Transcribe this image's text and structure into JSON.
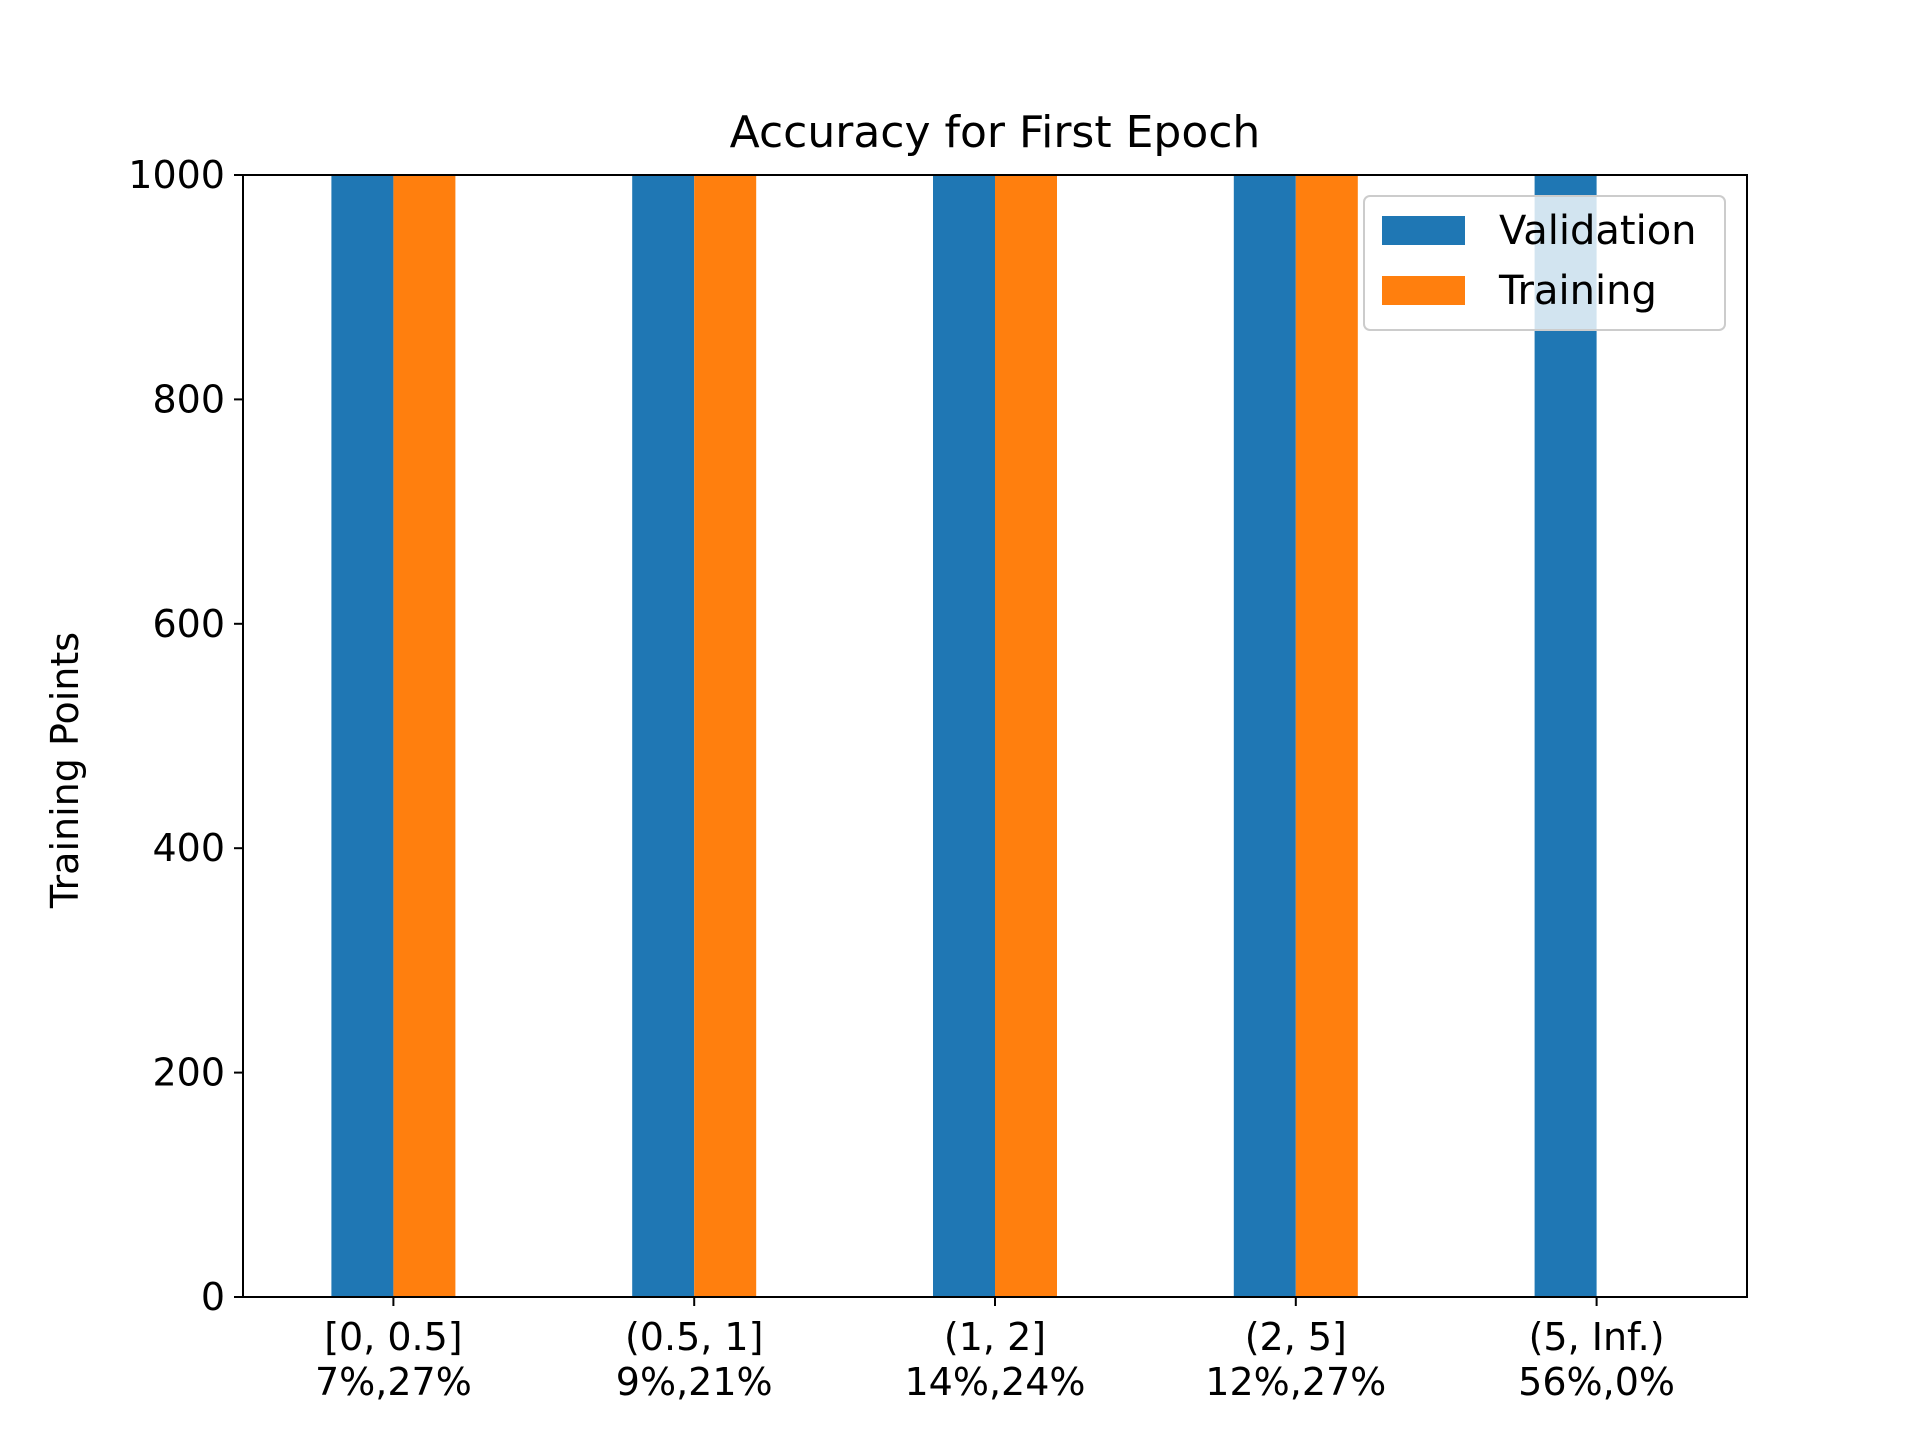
{
  "chart_data": {
    "type": "bar",
    "title": "Accuracy for First Epoch",
    "xlabel": "",
    "ylabel": "Training Points",
    "ylim": [
      0,
      1000
    ],
    "yticks": [
      0,
      200,
      400,
      600,
      800,
      1000
    ],
    "grid": false,
    "legend_position": "top-right",
    "categories": [
      {
        "range": "[0, 0.5]",
        "pct": "7%,27%"
      },
      {
        "range": "(0.5, 1]",
        "pct": "9%,21%"
      },
      {
        "range": "(1, 2]",
        "pct": "14%,24%"
      },
      {
        "range": "(2, 5]",
        "pct": "12%,27%"
      },
      {
        "range": "(5, Inf.)",
        "pct": "56%,0%"
      }
    ],
    "series": [
      {
        "name": "Validation",
        "color": "#1f77b4",
        "values": [
          1000,
          1000,
          1000,
          1000,
          1000
        ]
      },
      {
        "name": "Training",
        "color": "#ff7f0e",
        "values": [
          1000,
          1000,
          1000,
          1000,
          0
        ]
      }
    ]
  }
}
